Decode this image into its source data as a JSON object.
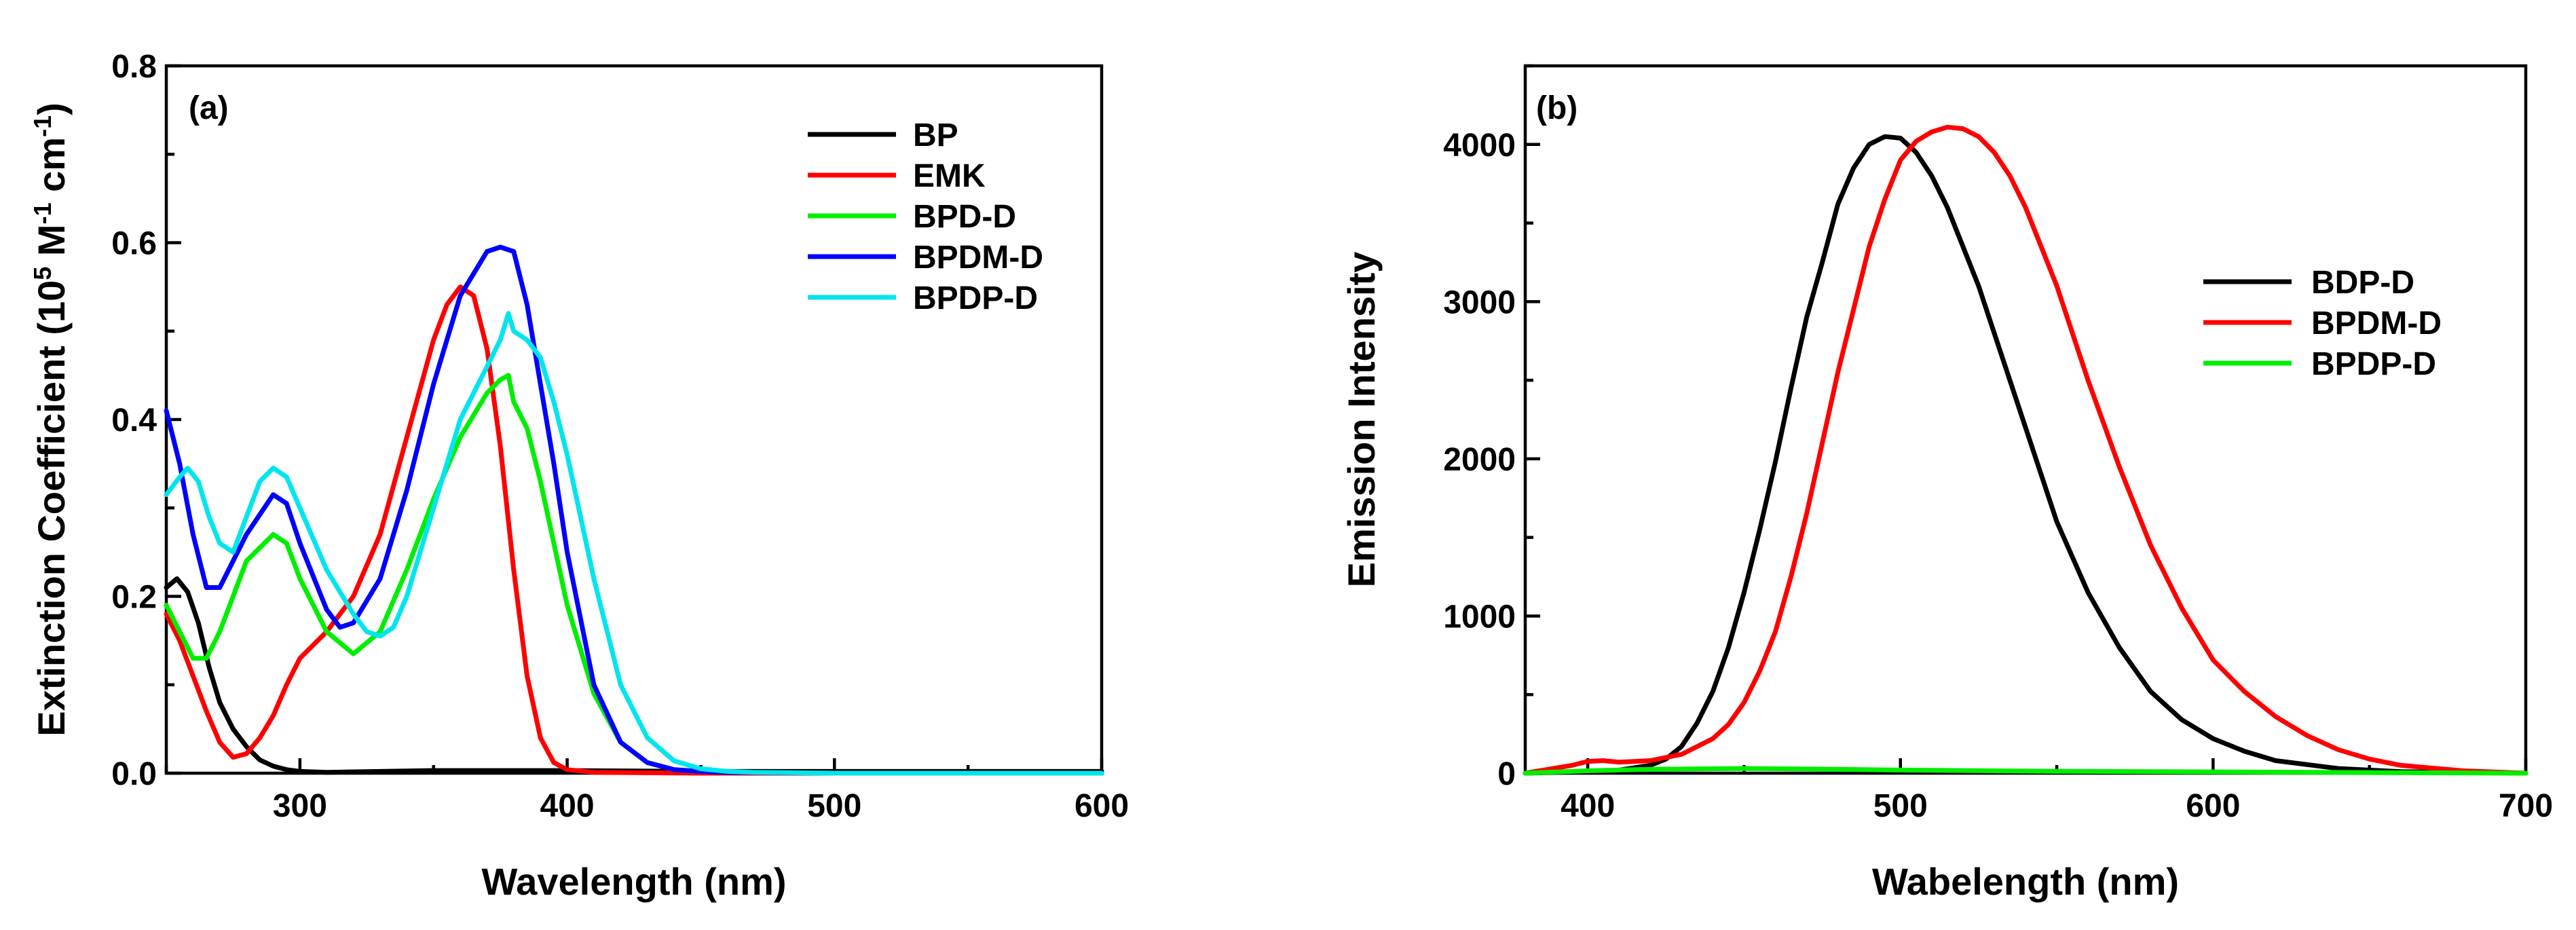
{
  "chart_data": [
    {
      "type": "line",
      "panel_label": "(a)",
      "xlabel": "Wavelength (nm)",
      "ylabel": {
        "prefix": "Extinction Coefficient (10",
        "sup1": "5",
        "mid": " M",
        "sup2": "-1",
        "mid2": " cm",
        "sup3": "-1",
        "suffix": ")"
      },
      "xlim": [
        250,
        600
      ],
      "ylim": [
        0.0,
        0.8
      ],
      "xticks": [
        300,
        400,
        500,
        600
      ],
      "xtick_labels": [
        "300",
        "400",
        "500",
        "600"
      ],
      "yticks": [
        0.0,
        0.2,
        0.4,
        0.6,
        0.8
      ],
      "ytick_labels": [
        "0.0",
        "0.2",
        "0.4",
        "0.6",
        "0.8"
      ],
      "legend_position": "top-right",
      "series": [
        {
          "name": "BP",
          "color": "#000000",
          "x": [
            250,
            254,
            258,
            262,
            266,
            270,
            275,
            280,
            285,
            290,
            295,
            300,
            310,
            350,
            400,
            450,
            500,
            550,
            600
          ],
          "y": [
            0.21,
            0.22,
            0.205,
            0.17,
            0.12,
            0.08,
            0.05,
            0.03,
            0.015,
            0.008,
            0.004,
            0.002,
            0.001,
            0.003,
            0.003,
            0.002,
            0.002,
            0.002,
            0.002
          ]
        },
        {
          "name": "EMK",
          "color": "#ff0000",
          "x": [
            250,
            255,
            260,
            265,
            270,
            275,
            280,
            285,
            290,
            295,
            300,
            310,
            320,
            330,
            340,
            350,
            355,
            360,
            365,
            370,
            375,
            380,
            385,
            390,
            395,
            400,
            410,
            450,
            500,
            550,
            600
          ],
          "y": [
            0.18,
            0.15,
            0.11,
            0.07,
            0.035,
            0.018,
            0.022,
            0.04,
            0.065,
            0.1,
            0.13,
            0.16,
            0.2,
            0.27,
            0.38,
            0.49,
            0.53,
            0.55,
            0.54,
            0.48,
            0.37,
            0.23,
            0.11,
            0.04,
            0.012,
            0.004,
            0.001,
            0.0,
            0.0,
            0.0,
            0.0
          ]
        },
        {
          "name": "BPD-D",
          "color": "#00ee00",
          "x": [
            250,
            255,
            260,
            265,
            270,
            280,
            290,
            295,
            300,
            310,
            320,
            330,
            340,
            350,
            360,
            370,
            375,
            378,
            380,
            385,
            390,
            395,
            400,
            410,
            420,
            430,
            440,
            450,
            460,
            500,
            600
          ],
          "y": [
            0.19,
            0.16,
            0.13,
            0.13,
            0.16,
            0.24,
            0.27,
            0.26,
            0.22,
            0.16,
            0.135,
            0.16,
            0.23,
            0.31,
            0.38,
            0.43,
            0.445,
            0.45,
            0.42,
            0.39,
            0.33,
            0.26,
            0.19,
            0.09,
            0.035,
            0.012,
            0.004,
            0.002,
            0.001,
            0.0,
            0.0
          ]
        },
        {
          "name": "BPDM-D",
          "color": "#0000ff",
          "x": [
            250,
            255,
            260,
            265,
            270,
            280,
            290,
            295,
            300,
            310,
            315,
            320,
            330,
            340,
            350,
            360,
            370,
            375,
            380,
            385,
            390,
            395,
            400,
            410,
            420,
            430,
            440,
            450,
            460,
            500,
            600
          ],
          "y": [
            0.41,
            0.35,
            0.27,
            0.21,
            0.21,
            0.27,
            0.315,
            0.305,
            0.26,
            0.185,
            0.165,
            0.17,
            0.22,
            0.32,
            0.44,
            0.54,
            0.59,
            0.595,
            0.59,
            0.53,
            0.44,
            0.35,
            0.25,
            0.1,
            0.035,
            0.012,
            0.004,
            0.002,
            0.001,
            0.0,
            0.0
          ]
        },
        {
          "name": "BPDP-D",
          "color": "#00e5ee",
          "x": [
            250,
            255,
            258,
            262,
            266,
            270,
            275,
            280,
            285,
            290,
            295,
            300,
            310,
            320,
            325,
            330,
            335,
            340,
            350,
            360,
            370,
            375,
            378,
            380,
            385,
            390,
            395,
            400,
            410,
            420,
            430,
            440,
            450,
            460,
            470,
            500,
            600
          ],
          "y": [
            0.315,
            0.335,
            0.345,
            0.33,
            0.29,
            0.26,
            0.25,
            0.29,
            0.33,
            0.345,
            0.335,
            0.3,
            0.23,
            0.18,
            0.16,
            0.155,
            0.165,
            0.2,
            0.3,
            0.4,
            0.46,
            0.49,
            0.52,
            0.5,
            0.49,
            0.47,
            0.42,
            0.36,
            0.22,
            0.1,
            0.04,
            0.014,
            0.005,
            0.002,
            0.001,
            0.0,
            0.0
          ]
        }
      ]
    },
    {
      "type": "line",
      "panel_label": "(b)",
      "xlabel": "Wabelength (nm)",
      "ylabel": "Emission Intensity",
      "xlim": [
        380,
        700
      ],
      "ylim": [
        0,
        4500
      ],
      "xticks": [
        400,
        500,
        600,
        700
      ],
      "xtick_labels": [
        "400",
        "500",
        "600",
        "700"
      ],
      "yticks": [
        0,
        1000,
        2000,
        3000,
        4000
      ],
      "ytick_labels": [
        "0",
        "1000",
        "2000",
        "3000",
        "4000"
      ],
      "legend_position": "right",
      "series": [
        {
          "name": "BDP-D",
          "color": "#000000",
          "x": [
            380,
            400,
            410,
            420,
            425,
            430,
            435,
            440,
            445,
            450,
            455,
            460,
            465,
            470,
            475,
            480,
            485,
            490,
            495,
            500,
            505,
            510,
            515,
            520,
            525,
            530,
            540,
            550,
            560,
            570,
            580,
            590,
            600,
            610,
            620,
            640,
            660,
            700
          ],
          "y": [
            0,
            10,
            20,
            50,
            90,
            170,
            320,
            520,
            800,
            1150,
            1550,
            1980,
            2450,
            2900,
            3250,
            3620,
            3850,
            4000,
            4050,
            4040,
            3950,
            3800,
            3600,
            3350,
            3100,
            2800,
            2200,
            1600,
            1150,
            800,
            520,
            340,
            220,
            140,
            80,
            30,
            10,
            0
          ]
        },
        {
          "name": "BPDM-D",
          "color": "#ff0000",
          "x": [
            380,
            395,
            400,
            405,
            410,
            420,
            430,
            440,
            445,
            450,
            455,
            460,
            465,
            470,
            475,
            480,
            485,
            490,
            495,
            500,
            505,
            510,
            515,
            520,
            525,
            530,
            535,
            540,
            550,
            560,
            570,
            580,
            590,
            600,
            610,
            620,
            630,
            640,
            650,
            660,
            680,
            700
          ],
          "y": [
            0,
            50,
            75,
            80,
            70,
            80,
            120,
            220,
            310,
            450,
            650,
            900,
            1250,
            1650,
            2100,
            2550,
            2950,
            3350,
            3650,
            3900,
            4020,
            4080,
            4110,
            4100,
            4050,
            3950,
            3800,
            3600,
            3100,
            2500,
            1950,
            1450,
            1050,
            720,
            520,
            360,
            240,
            150,
            90,
            50,
            15,
            0
          ]
        },
        {
          "name": "BPDP-D",
          "color": "#00ee00",
          "x": [
            380,
            400,
            420,
            450,
            480,
            500,
            550,
            600,
            650,
            700
          ],
          "y": [
            0,
            15,
            25,
            30,
            25,
            20,
            12,
            8,
            4,
            0
          ]
        }
      ]
    }
  ]
}
